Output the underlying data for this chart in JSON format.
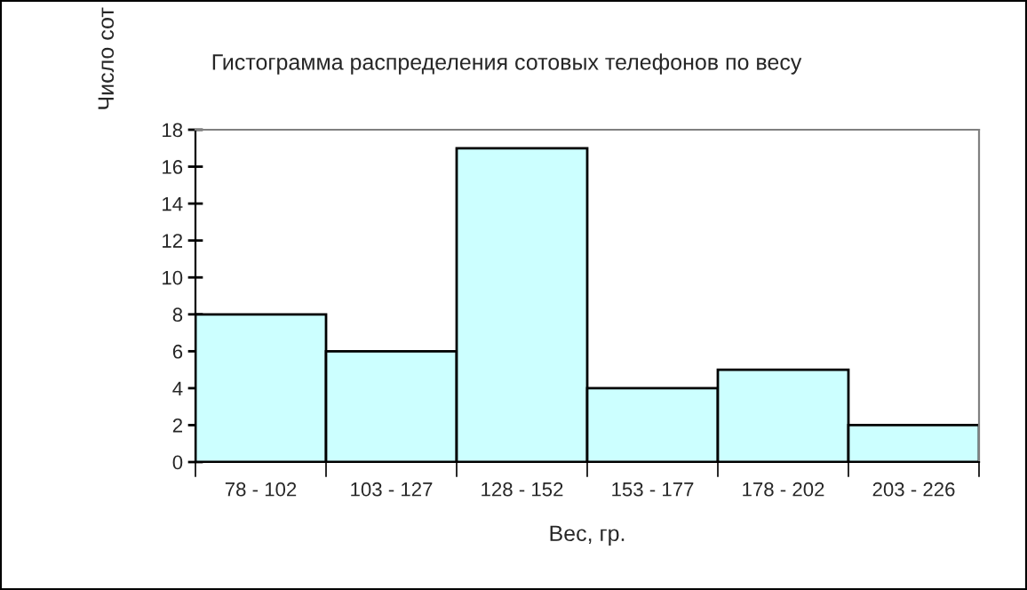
{
  "chart_data": {
    "type": "bar",
    "title": "Гистограмма распределения сотовых телефонов по весу",
    "xlabel": "Вес, гр.",
    "ylabel": "Число сот",
    "categories": [
      "78 - 102",
      "103 - 127",
      "128 - 152",
      "153 - 177",
      "178 - 202",
      "203 - 226"
    ],
    "values": [
      8,
      6,
      17,
      4,
      5,
      2
    ],
    "color": "#ccffff",
    "ylim": [
      0,
      18
    ],
    "yticks": [
      0,
      2,
      4,
      6,
      8,
      10,
      12,
      14,
      16,
      18
    ],
    "grid": false,
    "legend": false
  }
}
